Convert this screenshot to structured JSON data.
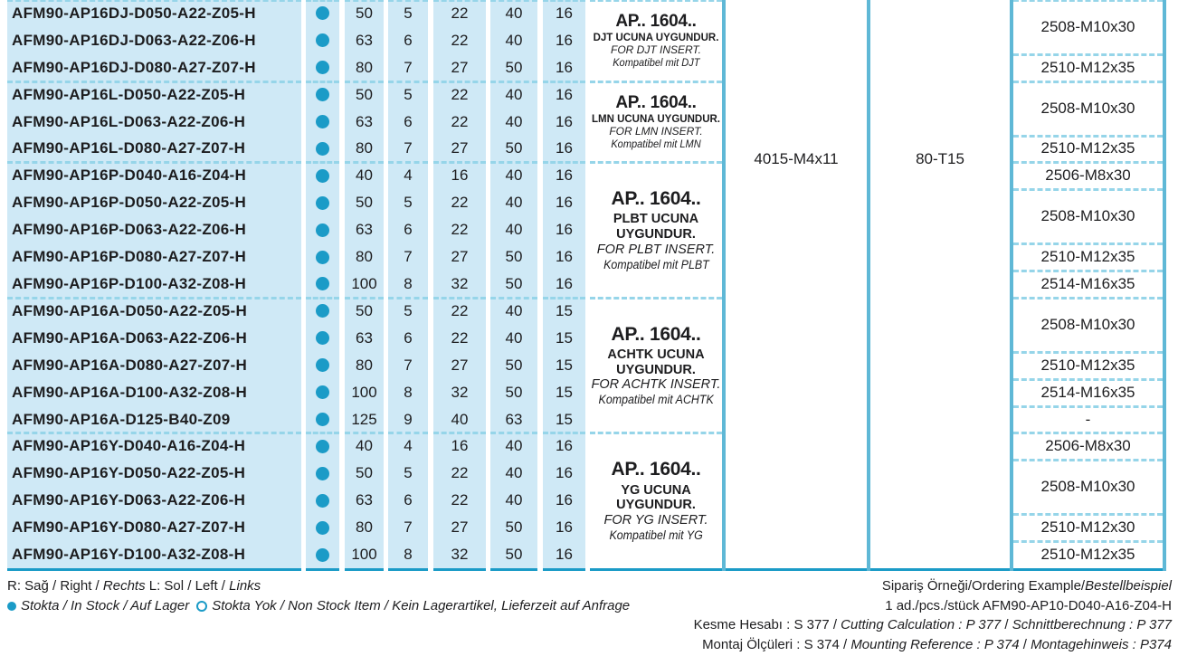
{
  "colors": {
    "accent_teal": "#1b9bc7",
    "light_blue": "#cfe9f6",
    "dashed_line": "#96d5e9",
    "column_border": "#5fb8d6",
    "text": "#1d1d1f"
  },
  "table": {
    "shared": {
      "holding_code": "4015-M4x11",
      "key_code": "80-T15"
    },
    "groups": [
      {
        "insert": {
          "title": "AP.. 1604..",
          "tr": "DJT UCUNA UYGUNDUR.",
          "en": "FOR DJT INSERT.",
          "de": "Kompatibel mit DJT"
        },
        "rows": [
          {
            "code": "AFM90-AP16DJ-D050-A22-Z05-H",
            "stock": "in-stock",
            "values": [
              "50",
              "5",
              "22",
              "40",
              "16"
            ]
          },
          {
            "code": "AFM90-AP16DJ-D063-A22-Z06-H",
            "stock": "in-stock",
            "values": [
              "63",
              "6",
              "22",
              "40",
              "16"
            ]
          },
          {
            "code": "AFM90-AP16DJ-D080-A27-Z07-H",
            "stock": "in-stock",
            "values": [
              "80",
              "7",
              "27",
              "50",
              "16"
            ]
          }
        ],
        "screws": [
          {
            "label": "2508-M10x30",
            "span": 2
          },
          {
            "label": "2510-M12x35",
            "span": 1
          }
        ]
      },
      {
        "insert": {
          "title": "AP.. 1604..",
          "tr": "LMN UCUNA UYGUNDUR.",
          "en": "FOR LMN INSERT.",
          "de": "Kompatibel mit LMN"
        },
        "rows": [
          {
            "code": "AFM90-AP16L-D050-A22-Z05-H",
            "stock": "in-stock",
            "values": [
              "50",
              "5",
              "22",
              "40",
              "16"
            ]
          },
          {
            "code": "AFM90-AP16L-D063-A22-Z06-H",
            "stock": "in-stock",
            "values": [
              "63",
              "6",
              "22",
              "40",
              "16"
            ]
          },
          {
            "code": "AFM90-AP16L-D080-A27-Z07-H",
            "stock": "in-stock",
            "values": [
              "80",
              "7",
              "27",
              "50",
              "16"
            ]
          }
        ],
        "screws": [
          {
            "label": "2508-M10x30",
            "span": 2
          },
          {
            "label": "2510-M12x35",
            "span": 1
          }
        ]
      },
      {
        "insert": {
          "title": "AP.. 1604..",
          "tr": "PLBT UCUNA UYGUNDUR.",
          "en": "FOR PLBT INSERT.",
          "de": "Kompatibel mit PLBT"
        },
        "rows": [
          {
            "code": "AFM90-AP16P-D040-A16-Z04-H",
            "stock": "in-stock",
            "values": [
              "40",
              "4",
              "16",
              "40",
              "16"
            ]
          },
          {
            "code": "AFM90-AP16P-D050-A22-Z05-H",
            "stock": "in-stock",
            "values": [
              "50",
              "5",
              "22",
              "40",
              "16"
            ]
          },
          {
            "code": "AFM90-AP16P-D063-A22-Z06-H",
            "stock": "in-stock",
            "values": [
              "63",
              "6",
              "22",
              "40",
              "16"
            ]
          },
          {
            "code": "AFM90-AP16P-D080-A27-Z07-H",
            "stock": "in-stock",
            "values": [
              "80",
              "7",
              "27",
              "50",
              "16"
            ]
          },
          {
            "code": "AFM90-AP16P-D100-A32-Z08-H",
            "stock": "in-stock",
            "values": [
              "100",
              "8",
              "32",
              "50",
              "16"
            ]
          }
        ],
        "screws": [
          {
            "label": "2506-M8x30",
            "span": 1
          },
          {
            "label": "2508-M10x30",
            "span": 2
          },
          {
            "label": "2510-M12x35",
            "span": 1
          },
          {
            "label": "2514-M16x35",
            "span": 1
          }
        ]
      },
      {
        "insert": {
          "title": "AP.. 1604..",
          "tr": "ACHTK UCUNA UYGUNDUR.",
          "en": "FOR ACHTK INSERT.",
          "de": "Kompatibel mit ACHTK"
        },
        "rows": [
          {
            "code": "AFM90-AP16A-D050-A22-Z05-H",
            "stock": "in-stock",
            "values": [
              "50",
              "5",
              "22",
              "40",
              "15"
            ]
          },
          {
            "code": "AFM90-AP16A-D063-A22-Z06-H",
            "stock": "in-stock",
            "values": [
              "63",
              "6",
              "22",
              "40",
              "15"
            ]
          },
          {
            "code": "AFM90-AP16A-D080-A27-Z07-H",
            "stock": "in-stock",
            "values": [
              "80",
              "7",
              "27",
              "50",
              "15"
            ]
          },
          {
            "code": "AFM90-AP16A-D100-A32-Z08-H",
            "stock": "in-stock",
            "values": [
              "100",
              "8",
              "32",
              "50",
              "15"
            ]
          },
          {
            "code": "AFM90-AP16A-D125-B40-Z09",
            "stock": "in-stock",
            "values": [
              "125",
              "9",
              "40",
              "63",
              "15"
            ]
          }
        ],
        "screws": [
          {
            "label": "2508-M10x30",
            "span": 2
          },
          {
            "label": "2510-M12x35",
            "span": 1
          },
          {
            "label": "2514-M16x35",
            "span": 1
          },
          {
            "label": "-",
            "span": 1
          }
        ]
      },
      {
        "insert": {
          "title": "AP.. 1604..",
          "tr": "YG UCUNA UYGUNDUR.",
          "en": "FOR YG INSERT.",
          "de": "Kompatibel mit YG"
        },
        "rows": [
          {
            "code": "AFM90-AP16Y-D040-A16-Z04-H",
            "stock": "in-stock",
            "values": [
              "40",
              "4",
              "16",
              "40",
              "16"
            ]
          },
          {
            "code": "AFM90-AP16Y-D050-A22-Z05-H",
            "stock": "in-stock",
            "values": [
              "50",
              "5",
              "22",
              "40",
              "16"
            ]
          },
          {
            "code": "AFM90-AP16Y-D063-A22-Z06-H",
            "stock": "in-stock",
            "values": [
              "63",
              "6",
              "22",
              "40",
              "16"
            ]
          },
          {
            "code": "AFM90-AP16Y-D080-A27-Z07-H",
            "stock": "in-stock",
            "values": [
              "80",
              "7",
              "27",
              "50",
              "16"
            ]
          },
          {
            "code": "AFM90-AP16Y-D100-A32-Z08-H",
            "stock": "in-stock",
            "values": [
              "100",
              "8",
              "32",
              "50",
              "16"
            ]
          }
        ],
        "screws": [
          {
            "label": "2506-M8x30",
            "span": 1
          },
          {
            "label": "2508-M10x30",
            "span": 2
          },
          {
            "label": "2510-M12x30",
            "span": 1
          },
          {
            "label": "2510-M12x35",
            "span": 1
          }
        ]
      }
    ]
  },
  "footer": {
    "rl_line": [
      {
        "t": "R: Sağ / Right / ",
        "i": false
      },
      {
        "t": "Rechts",
        "i": true
      },
      {
        "t": "   L: Sol / Left / ",
        "i": false
      },
      {
        "t": "Links",
        "i": true
      }
    ],
    "legend": {
      "in_stock": "Stokta / In Stock / Auf Lager",
      "non_stock": "Stokta Yok / Non Stock Item / Kein Lagerartikel, Lieferzeit auf Anfrage"
    },
    "right_lines": [
      [
        {
          "t": "Sipariş Örneği/Ordering Example/",
          "i": false
        },
        {
          "t": "Bestellbeispiel",
          "i": true
        }
      ],
      [
        {
          "t": "1 ad./pcs./stück  AFM90-AP10-D040-A16-Z04-H",
          "i": false
        }
      ],
      [
        {
          "t": "Kesme Hesabı : S 377 / ",
          "i": false
        },
        {
          "t": "Cutting Calculation : P 377",
          "i": true
        },
        {
          "t": " / ",
          "i": false
        },
        {
          "t": "Schnittberechnung : P 377",
          "i": true
        }
      ],
      [
        {
          "t": "Montaj Ölçüleri :  S 374 / ",
          "i": false
        },
        {
          "t": "Mounting Reference : P 374",
          "i": true
        },
        {
          "t": " / ",
          "i": false
        },
        {
          "t": "Montagehinweis : P374",
          "i": true
        }
      ]
    ]
  }
}
